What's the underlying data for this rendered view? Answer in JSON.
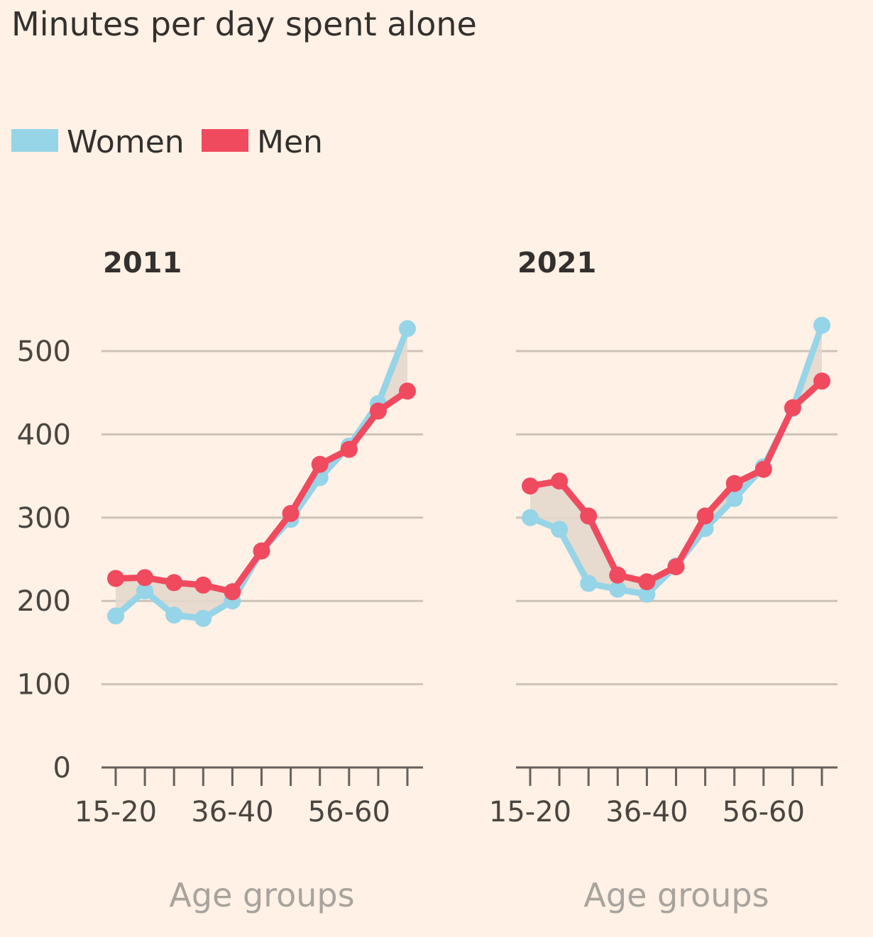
{
  "chart_data": {
    "type": "line",
    "title": "Minutes per day spent alone",
    "xlabel": "Age groups",
    "ylabel": "",
    "ylim": [
      0,
      500
    ],
    "yticks": [
      0,
      100,
      200,
      300,
      400,
      500
    ],
    "grid": true,
    "legend": {
      "placement": "top-left",
      "entries": [
        "Women",
        "Men"
      ]
    },
    "colors": {
      "Women": "#96d4e8",
      "Men": "#f04a5f",
      "gap_fill": "#e4d7cb",
      "background": "#fff1e5"
    },
    "categories_labeled": [
      "15-20",
      "36-40",
      "56-60"
    ],
    "panels": [
      {
        "title": "2011",
        "x_tick_labels": [
          "15-20",
          "",
          "",
          "",
          "36-40",
          "",
          "",
          "",
          "56-60",
          "",
          ""
        ],
        "series": [
          {
            "name": "Women",
            "values": [
              182,
              212,
              183,
              179,
              200,
              260,
              298,
              348,
              386,
              437,
              527
            ]
          },
          {
            "name": "Men",
            "values": [
              227,
              228,
              222,
              219,
              211,
              260,
              305,
              364,
              382,
              428,
              452
            ]
          }
        ]
      },
      {
        "title": "2021",
        "x_tick_labels": [
          "15-20",
          "",
          "",
          "",
          "36-40",
          "",
          "",
          "",
          "56-60",
          "",
          ""
        ],
        "series": [
          {
            "name": "Women",
            "values": [
              300,
              286,
              221,
              214,
              208,
              242,
              287,
              323,
              361,
              431,
              531
            ]
          },
          {
            "name": "Men",
            "values": [
              338,
              344,
              302,
              231,
              223,
              241,
              302,
              341,
              358,
              432,
              464
            ]
          }
        ]
      }
    ]
  }
}
